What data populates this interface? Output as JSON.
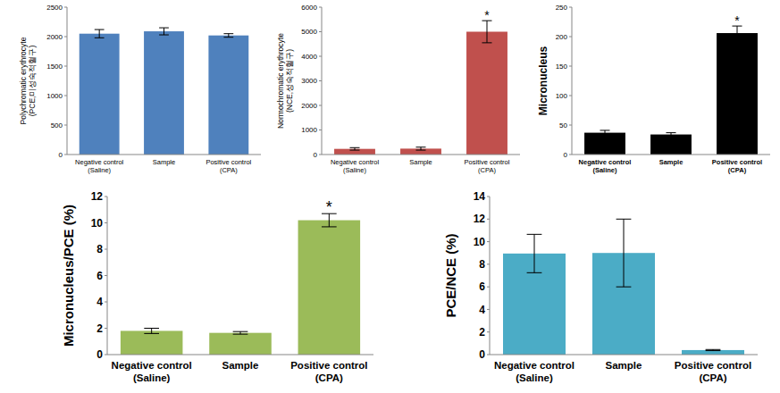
{
  "chart_data": [
    {
      "type": "bar",
      "ylabel": "Polychromatic erythrocyte\n(PCE,미성숙적혈구)",
      "categories": [
        "Negative control\n(Saline)",
        "Sample",
        "Positive control\n(CPA)"
      ],
      "values": [
        2050,
        2090,
        2020
      ],
      "errors": [
        70,
        60,
        30
      ],
      "color": "#4f81bd",
      "ylim": [
        0,
        2500
      ],
      "yticks": [
        0,
        500,
        1000,
        1500,
        2000,
        2500
      ],
      "grid": false
    },
    {
      "type": "bar",
      "ylabel": "Normochromatic erythrocyte\n(NCE,성숙적혈구)",
      "categories": [
        "Negative control\n(Saline)",
        "Sample",
        "Positive control\n(CPA)"
      ],
      "values": [
        230,
        240,
        5000
      ],
      "errors": [
        50,
        60,
        450
      ],
      "color": "#c0504d",
      "ylim": [
        0,
        6000
      ],
      "yticks": [
        0,
        1000,
        2000,
        3000,
        4000,
        5000,
        6000
      ],
      "grid": false,
      "annotations": [
        {
          "text": "*",
          "category": "Positive control\n(CPA)"
        }
      ]
    },
    {
      "type": "bar",
      "ylabel": "Micronucleus",
      "categories": [
        "Negative control\n(Saline)",
        "Sample",
        "Positive control\n(CPA)"
      ],
      "values": [
        37,
        34,
        206
      ],
      "errors": [
        4,
        3,
        12
      ],
      "color": "#000000",
      "ylim": [
        0,
        250
      ],
      "yticks": [
        0,
        50,
        100,
        150,
        200,
        250
      ],
      "grid": false,
      "annotations": [
        {
          "text": "*",
          "category": "Positive control\n(CPA)"
        }
      ]
    },
    {
      "type": "bar",
      "ylabel": "Micronucleus/PCE (%)",
      "categories": [
        "Negative control\n(Saline)",
        "Sample",
        "Positive control\n(CPA)"
      ],
      "values": [
        1.8,
        1.65,
        10.2
      ],
      "errors": [
        0.2,
        0.1,
        0.5
      ],
      "color": "#9bbb59",
      "ylim": [
        0,
        12
      ],
      "yticks": [
        0,
        2,
        4,
        6,
        8,
        10,
        12
      ],
      "grid": false,
      "annotations": [
        {
          "text": "*",
          "category": "Positive control\n(CPA)"
        }
      ]
    },
    {
      "type": "bar",
      "ylabel": "PCE/NCE (%)",
      "categories": [
        "Negative control\n(Saline)",
        "Sample",
        "Positive control\n(CPA)"
      ],
      "values": [
        8.95,
        9.0,
        0.4
      ],
      "errors": [
        1.7,
        3.0,
        0.05
      ],
      "color": "#4bacc6",
      "ylim": [
        0,
        14
      ],
      "yticks": [
        0,
        2,
        4,
        6,
        8,
        10,
        12,
        14
      ],
      "grid": false
    }
  ]
}
